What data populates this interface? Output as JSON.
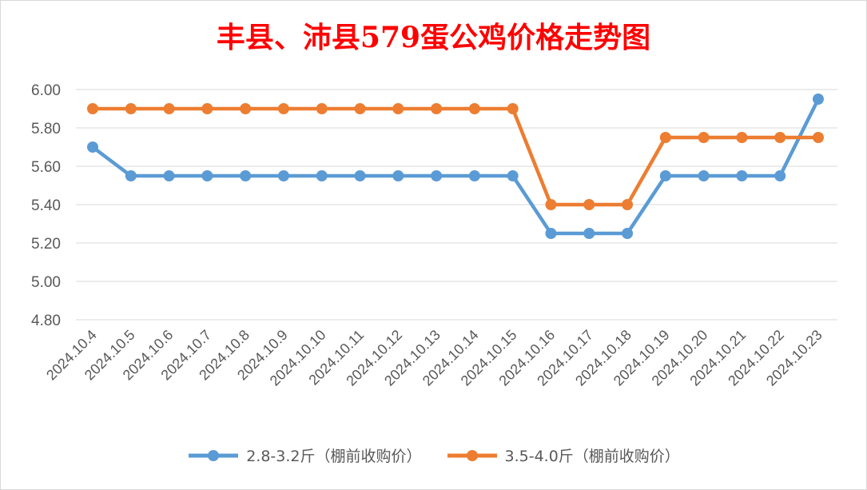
{
  "chart_data": {
    "type": "line",
    "title": "丰县、沛县579蛋公鸡价格走势图",
    "xlabel": "",
    "ylabel": "",
    "ylim": [
      4.8,
      6.0
    ],
    "yticks": [
      "4.80",
      "5.00",
      "5.20",
      "5.40",
      "5.60",
      "5.80",
      "6.00"
    ],
    "grid": true,
    "legend_position": "bottom",
    "categories": [
      "2024.10.4",
      "2024.10.5",
      "2024.10.6",
      "2024.10.7",
      "2024.10.8",
      "2024.10.9",
      "2024.10.10",
      "2024.10.11",
      "2024.10.12",
      "2024.10.13",
      "2024.10.14",
      "2024.10.15",
      "2024.10.16",
      "2024.10.17",
      "2024.10.18",
      "2024.10.19",
      "2024.10.20",
      "2024.10.21",
      "2024.10.22",
      "2024.10.23"
    ],
    "series": [
      {
        "name": "2.8-3.2斤（棚前收购价）",
        "color": "#5b9bd5",
        "values": [
          5.7,
          5.55,
          5.55,
          5.55,
          5.55,
          5.55,
          5.55,
          5.55,
          5.55,
          5.55,
          5.55,
          5.55,
          5.25,
          5.25,
          5.25,
          5.55,
          5.55,
          5.55,
          5.55,
          5.95
        ]
      },
      {
        "name": "3.5-4.0斤（棚前收购价）",
        "color": "#ed7d31",
        "values": [
          5.9,
          5.9,
          5.9,
          5.9,
          5.9,
          5.9,
          5.9,
          5.9,
          5.9,
          5.9,
          5.9,
          5.9,
          5.4,
          5.4,
          5.4,
          5.75,
          5.75,
          5.75,
          5.75,
          5.75
        ]
      }
    ]
  }
}
